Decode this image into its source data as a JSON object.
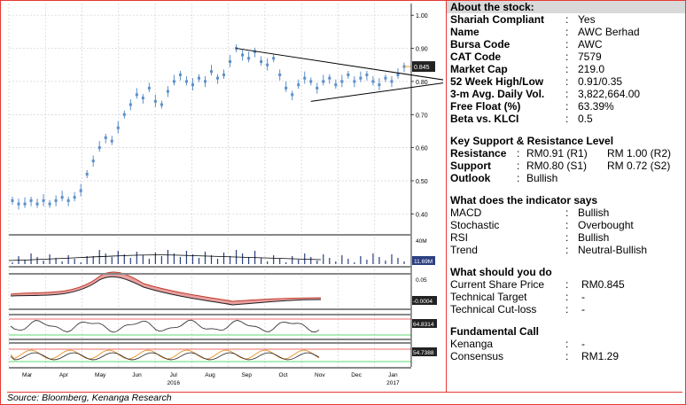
{
  "chart_data": {
    "type": "line",
    "title": "",
    "x_months": [
      "Mar",
      "Apr",
      "May",
      "Jun",
      "Jul",
      "Aug",
      "Sep",
      "Oct",
      "Nov",
      "Dec",
      "Jan"
    ],
    "year_labels": [
      "2016",
      "2017"
    ],
    "ylabel": "",
    "ylim": [
      0.35,
      1.03
    ],
    "yticks": [
      1.0,
      0.9,
      0.8,
      0.7,
      0.6,
      0.5,
      0.4
    ],
    "ytick_labels": [
      "1.00",
      "0.90",
      "0.80",
      "0.70",
      "0.60",
      "0.50",
      "0.40"
    ],
    "last_price_label": "0.845",
    "price_series": [
      0.44,
      0.43,
      0.43,
      0.44,
      0.43,
      0.44,
      0.43,
      0.44,
      0.45,
      0.44,
      0.45,
      0.47,
      0.52,
      0.56,
      0.6,
      0.63,
      0.62,
      0.66,
      0.7,
      0.73,
      0.76,
      0.75,
      0.78,
      0.74,
      0.73,
      0.77,
      0.8,
      0.82,
      0.8,
      0.79,
      0.81,
      0.8,
      0.83,
      0.81,
      0.82,
      0.86,
      0.9,
      0.88,
      0.87,
      0.89,
      0.86,
      0.85,
      0.87,
      0.82,
      0.78,
      0.76,
      0.79,
      0.81,
      0.8,
      0.78,
      0.8,
      0.81,
      0.79,
      0.8,
      0.82,
      0.8,
      0.81,
      0.82,
      0.8,
      0.79,
      0.81,
      0.8,
      0.82,
      0.845
    ],
    "triangle": {
      "upper": [
        [
          0.9,
          36
        ],
        [
          0.8,
          71
        ]
      ],
      "lower": [
        [
          0.74,
          48
        ],
        [
          0.8,
          71
        ]
      ]
    },
    "volume_panel": {
      "label_top": "40M",
      "label_value": "11.69M"
    },
    "macd_panel": {
      "label_top": "0.05",
      "label_value": "-0.0004"
    },
    "stoch_panel": {
      "label_value": "64.8314"
    },
    "rsi_panel": {
      "label_value": "54.7388"
    }
  },
  "panel": {
    "about": {
      "title": "About the stock:",
      "rows": [
        {
          "k": "Shariah Compliant",
          "v": "Yes"
        },
        {
          "k": "Name",
          "v": "AWC Berhad"
        },
        {
          "k": "Bursa Code",
          "v": "AWC"
        },
        {
          "k": "CAT Code",
          "v": "7579"
        },
        {
          "k": "Market Cap",
          "v": "219.0"
        },
        {
          "k": "52 Week High/Low",
          "v": "0.91/0.35"
        },
        {
          "k": "3-m Avg. Daily Vol.",
          "v": "3,822,664.00"
        },
        {
          "k": "Free Float (%)",
          "v": "63.39%"
        },
        {
          "k": "Beta vs. KLCI",
          "v": "0.5"
        }
      ]
    },
    "support": {
      "title": "Key Support & Resistance Level",
      "resistance": {
        "k": "Resistance",
        "v1": "RM0.91 (R1)",
        "v2": "RM 1.00 (R2)"
      },
      "support": {
        "k": "Support",
        "v1": "RM0.80 (S1)",
        "v2": "RM 0.72 (S2)"
      },
      "outlook": {
        "k": "Outlook",
        "v": "Bullish"
      }
    },
    "indicator": {
      "title": "What does the indicator says",
      "rows": [
        {
          "k": "MACD",
          "v": "Bullish"
        },
        {
          "k": "Stochastic",
          "v": "Overbought"
        },
        {
          "k": "RSI",
          "v": "Bullish"
        },
        {
          "k": "Trend",
          "v": "Neutral-Bullish"
        }
      ]
    },
    "todo": {
      "title": "What should you do",
      "rows": [
        {
          "k": "Current Share Price",
          "v": "RM0.845"
        },
        {
          "k": "Technical Target",
          "v": "-"
        },
        {
          "k": "Technical Cut-loss",
          "v": "-"
        }
      ]
    },
    "fundamental": {
      "title": "Fundamental Call",
      "rows": [
        {
          "k": "Kenanga",
          "v": "-"
        },
        {
          "k": "Consensus",
          "v": "RM1.29"
        }
      ]
    },
    "colon": ":"
  },
  "source": "Source: Bloomberg, Kenanga Research",
  "colors": {
    "frame": "#e53935",
    "candle": "#5b8fc9",
    "bar": "#2b3f80",
    "macd_fill": "#e8a0a0",
    "orange": "#e8a040"
  }
}
